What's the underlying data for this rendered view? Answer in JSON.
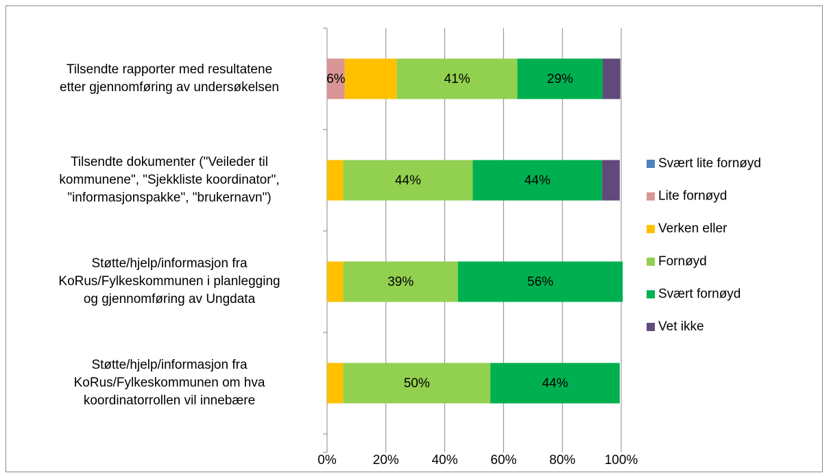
{
  "chart_data": {
    "type": "bar",
    "orientation": "horizontal",
    "stacked": true,
    "categories": [
      [
        "Tilsendte rapporter med resultatene",
        "etter gjennomføring av undersøkelsen"
      ],
      [
        "Tilsendte dokumenter (\"Veileder til",
        "kommunene\", \"Sjekkliste koordinator\",",
        "\"informasjonspakke\", \"brukernavn\")"
      ],
      [
        "Støtte/hjelp/informasjon fra",
        "KoRus/Fylkeskommunen i planlegging",
        "og gjennomføring av Ungdata"
      ],
      [
        "Støtte/hjelp/informasjon fra",
        "KoRus/Fylkeskommunen om hva",
        "koordinatorrollen vil innebære"
      ]
    ],
    "series": [
      {
        "name": "Svært lite fornøyd",
        "color": "#4f81bd",
        "values": [
          0,
          0,
          0,
          0
        ],
        "value_labels": [
          null,
          null,
          null,
          null
        ]
      },
      {
        "name": "Lite fornøyd",
        "color": "#d99694",
        "values": [
          6,
          0,
          0,
          0
        ],
        "value_labels": [
          "6%",
          null,
          null,
          null
        ]
      },
      {
        "name": "Verken eller",
        "color": "#ffc000",
        "values": [
          17.7,
          5.5,
          5.5,
          5.5
        ],
        "value_labels": [
          null,
          null,
          null,
          null
        ]
      },
      {
        "name": "Fornøyd",
        "color": "#92d050",
        "values": [
          41,
          44,
          39,
          50
        ],
        "value_labels": [
          "41%",
          "44%",
          "39%",
          "50%"
        ]
      },
      {
        "name": "Svært fornøyd",
        "color": "#00b050",
        "values": [
          29,
          44,
          56,
          44
        ],
        "value_labels": [
          "29%",
          "44%",
          "56%",
          "44%"
        ]
      },
      {
        "name": "Vet ikke",
        "color": "#604a7b",
        "values": [
          6,
          6,
          0,
          0
        ],
        "value_labels": [
          null,
          null,
          null,
          null
        ]
      }
    ],
    "xlim": [
      0,
      100
    ],
    "xticks": [
      {
        "value": 0,
        "label": "0%"
      },
      {
        "value": 20,
        "label": "20%"
      },
      {
        "value": 40,
        "label": "40%"
      },
      {
        "value": 60,
        "label": "60%"
      },
      {
        "value": 80,
        "label": "80%"
      },
      {
        "value": 100,
        "label": "100%"
      }
    ],
    "grid": true,
    "legend": "right"
  }
}
